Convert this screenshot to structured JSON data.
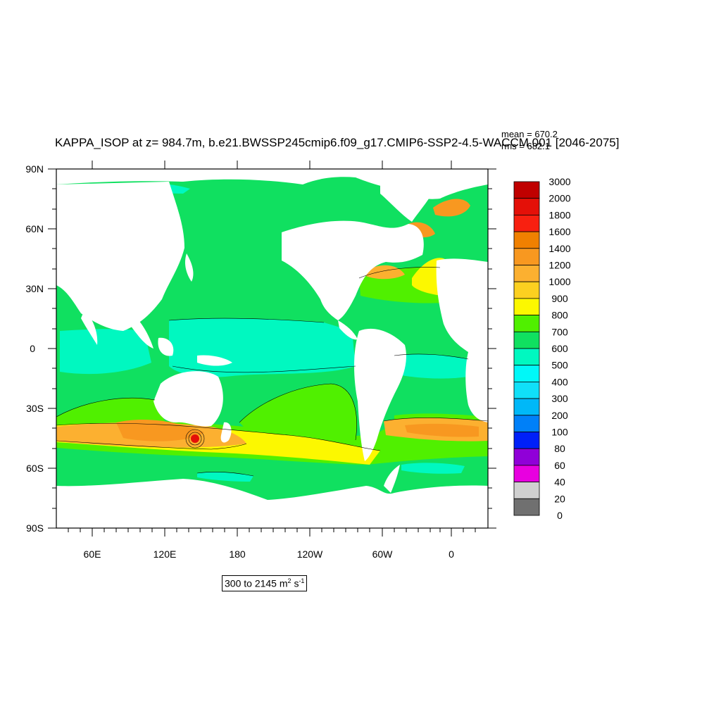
{
  "title": "KAPPA_ISOP at z= 984.7m, b.e21.BWSSP245cmip6.f09_g17.CMIP6-SSP2-4.5-WACCM.001 [2046-2075]",
  "stats": {
    "mean": "mean = 670.2",
    "rms": "rms = 682.1"
  },
  "range": {
    "from_to": "300 to 2145",
    "unit_m": "m",
    "exp_m": "2",
    "unit_s": "s",
    "exp_s": "-1"
  },
  "lat_labels": [
    "90N",
    "60N",
    "30N",
    "0",
    "30S",
    "60S",
    "90S"
  ],
  "lon_labels": [
    "60E",
    "120E",
    "180",
    "120W",
    "60W",
    "0"
  ],
  "colorbar": {
    "labels": [
      "3000",
      "2000",
      "1800",
      "1600",
      "1400",
      "1200",
      "1000",
      "900",
      "800",
      "700",
      "600",
      "500",
      "400",
      "300",
      "200",
      "100",
      "80",
      "60",
      "40",
      "20",
      "0"
    ],
    "colors": [
      "#c00000",
      "#e41008",
      "#f82010",
      "#f08000",
      "#f89820",
      "#fcb030",
      "#fcd020",
      "#fcf800",
      "#50f000",
      "#10e060",
      "#00f8c0",
      "#00f8f8",
      "#10e0f8",
      "#00b8f8",
      "#0080f8",
      "#0020f8",
      "#9000d8",
      "#e800e0",
      "#d0d0d0",
      "#707070"
    ]
  },
  "map_colors": {
    "ocean_main": "#10e060",
    "band_700_800": "#50f000",
    "band_500_600": "#00f8c0",
    "band_800_900": "#fcf800",
    "band_1000_1200": "#fcb030",
    "band_1200_1400": "#f89820",
    "peak": "#e41008",
    "land": "#ffffff"
  }
}
